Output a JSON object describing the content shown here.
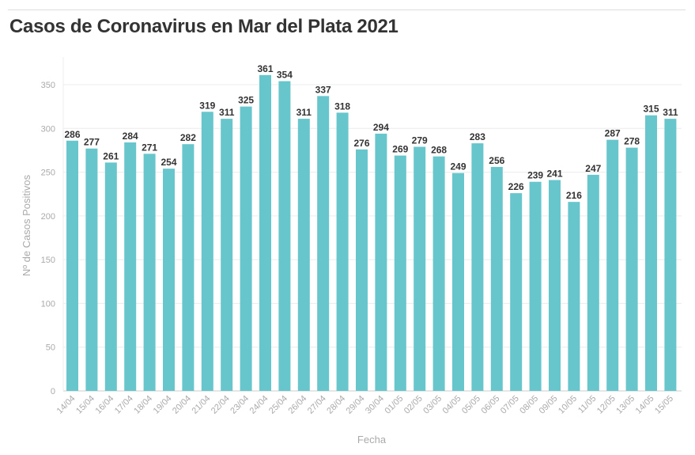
{
  "title": "Casos de Coronavirus en Mar del Plata 2021",
  "chart_data": {
    "type": "bar",
    "title": "Casos de Coronavirus en Mar del Plata 2021",
    "xlabel": "Fecha",
    "ylabel": "Nº de Casos Positivos",
    "ylim": [
      0,
      370
    ],
    "yticks": [
      0,
      50,
      100,
      150,
      200,
      250,
      300,
      350
    ],
    "grid": true,
    "bar_color": "#67c5cc",
    "categories": [
      "14/04",
      "15/04",
      "16/04",
      "17/04",
      "18/04",
      "19/04",
      "20/04",
      "21/04",
      "22/04",
      "23/04",
      "24/04",
      "25/04",
      "26/04",
      "27/04",
      "28/04",
      "29/04",
      "30/04",
      "01/05",
      "02/05",
      "03/05",
      "04/05",
      "05/05",
      "06/05",
      "07/05",
      "08/05",
      "09/05",
      "10/05",
      "11/05",
      "12/05",
      "13/05",
      "14/05",
      "15/05"
    ],
    "values": [
      286,
      277,
      261,
      284,
      271,
      254,
      282,
      319,
      311,
      325,
      361,
      354,
      311,
      337,
      318,
      276,
      294,
      269,
      279,
      268,
      249,
      283,
      256,
      226,
      239,
      241,
      216,
      247,
      287,
      278,
      315,
      311
    ]
  }
}
